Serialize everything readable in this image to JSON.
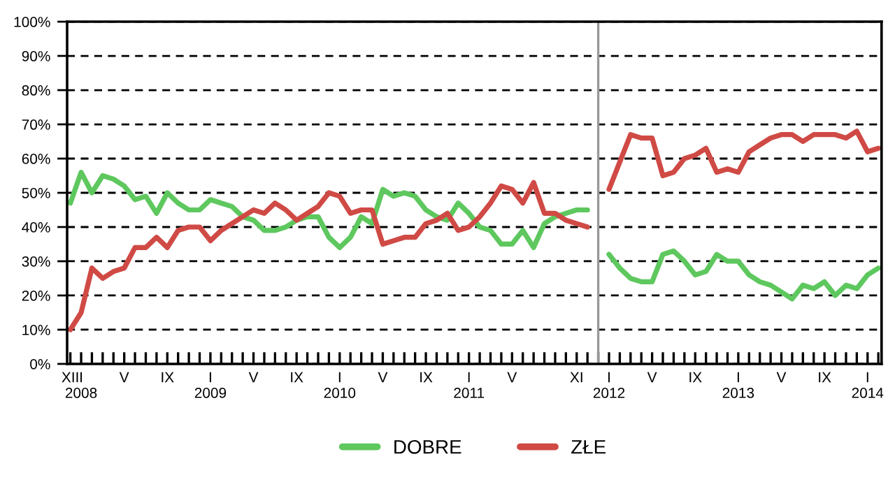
{
  "chart_data": {
    "type": "line",
    "categories": [
      "XII",
      "I\n2008",
      null,
      null,
      null,
      "V",
      null,
      null,
      null,
      "IX",
      null,
      null,
      null,
      "I\n2009",
      null,
      null,
      null,
      "V",
      null,
      null,
      null,
      "IX",
      null,
      null,
      null,
      "I\n2010",
      null,
      null,
      null,
      "V",
      null,
      null,
      null,
      "IX",
      null,
      null,
      null,
      "I\n2011",
      null,
      null,
      null,
      "V",
      null,
      null,
      null,
      null,
      null,
      "XI",
      null,
      null,
      "I\n2012",
      null,
      null,
      null,
      "V",
      null,
      null,
      null,
      "IX",
      null,
      null,
      null,
      "I\n2013",
      null,
      null,
      null,
      "V",
      null,
      null,
      null,
      "IX",
      null,
      null,
      null,
      "I\n2014",
      null
    ],
    "series": [
      {
        "name": "DOBRE",
        "color": "#5ec85e",
        "values": [
          47,
          56,
          50,
          55,
          54,
          52,
          48,
          49,
          44,
          50,
          47,
          45,
          45,
          48,
          47,
          46,
          43,
          42,
          39,
          39,
          40,
          42,
          43,
          43,
          37,
          34,
          37,
          43,
          41,
          51,
          49,
          50,
          49,
          45,
          43,
          42,
          47,
          44,
          40,
          39,
          35,
          35,
          39,
          34,
          41,
          43,
          44,
          45,
          45,
          null,
          32,
          28,
          25,
          24,
          24,
          32,
          33,
          30,
          26,
          27,
          32,
          30,
          30,
          26,
          24,
          23,
          21,
          19,
          23,
          22,
          24,
          20,
          23,
          22,
          26,
          28
        ]
      },
      {
        "name": "ZŁE",
        "color": "#d04a45",
        "values": [
          10,
          15,
          28,
          25,
          27,
          28,
          34,
          34,
          37,
          34,
          39,
          40,
          40,
          36,
          39,
          41,
          43,
          45,
          44,
          47,
          45,
          42,
          44,
          46,
          50,
          49,
          44,
          45,
          45,
          35,
          36,
          37,
          37,
          41,
          42,
          44,
          39,
          40,
          43,
          47,
          52,
          51,
          47,
          53,
          44,
          44,
          42,
          41,
          40,
          null,
          51,
          59,
          67,
          66,
          66,
          55,
          56,
          60,
          61,
          63,
          56,
          57,
          56,
          62,
          64,
          66,
          67,
          67,
          65,
          67,
          67,
          67,
          66,
          68,
          62,
          63
        ]
      }
    ],
    "ylim": [
      0,
      100
    ],
    "yticks": [
      {
        "value": 0,
        "label": "0%"
      },
      {
        "value": 10,
        "label": "10%"
      },
      {
        "value": 20,
        "label": "20%"
      },
      {
        "value": 30,
        "label": "30%"
      },
      {
        "value": 40,
        "label": "40%"
      },
      {
        "value": 50,
        "label": "50%"
      },
      {
        "value": 60,
        "label": "60%"
      },
      {
        "value": 70,
        "label": "70%"
      },
      {
        "value": 80,
        "label": "80%"
      },
      {
        "value": 90,
        "label": "90%"
      },
      {
        "value": 100,
        "label": "100%"
      }
    ],
    "grid": "y",
    "legend": "bottom",
    "marker": "none",
    "line_style": "solid"
  }
}
